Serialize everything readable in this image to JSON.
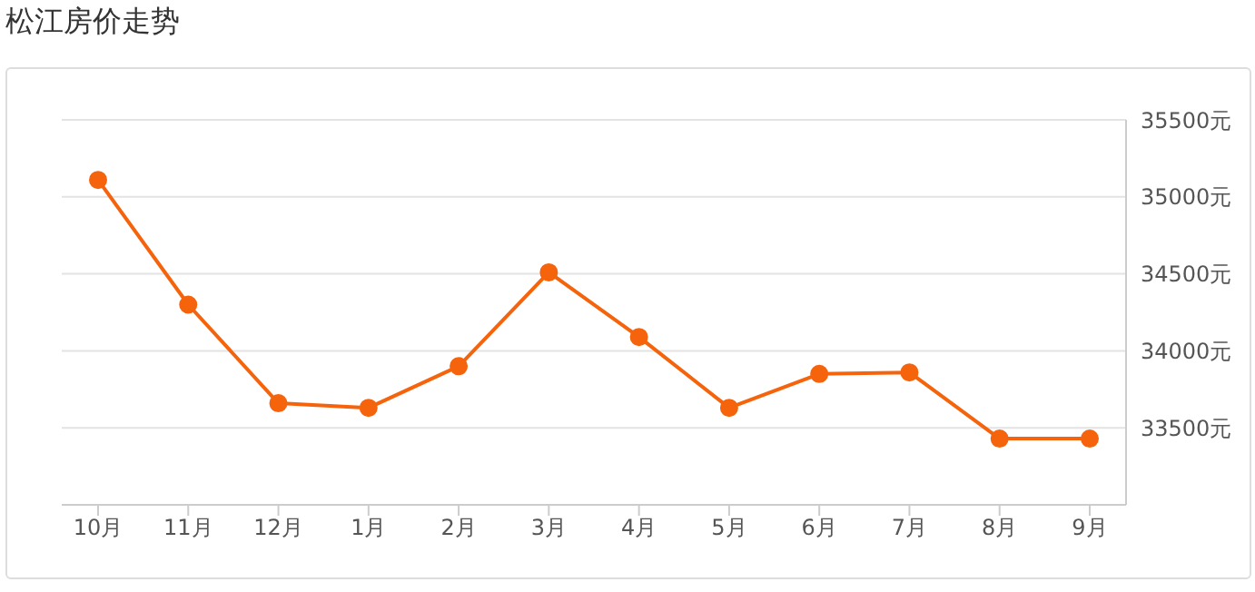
{
  "chart_data": {
    "type": "line",
    "title": "松江房价走势",
    "categories": [
      "10月",
      "11月",
      "12月",
      "1月",
      "2月",
      "3月",
      "4月",
      "5月",
      "6月",
      "7月",
      "8月",
      "9月"
    ],
    "series": [
      {
        "color": "#f5640c",
        "values": [
          35110,
          34300,
          33660,
          33630,
          33900,
          34510,
          34090,
          33630,
          33850,
          33860,
          33430,
          33430
        ]
      }
    ],
    "ylim": [
      33000,
      35500
    ],
    "yticks": [
      {
        "value": 33500,
        "label": "33500元"
      },
      {
        "value": 34000,
        "label": "34000元"
      },
      {
        "value": 34500,
        "label": "34500元"
      },
      {
        "value": 35000,
        "label": "35000元"
      },
      {
        "value": 35500,
        "label": "35500元"
      }
    ],
    "grid": "y",
    "marker": "circle",
    "line_style": "solid"
  }
}
